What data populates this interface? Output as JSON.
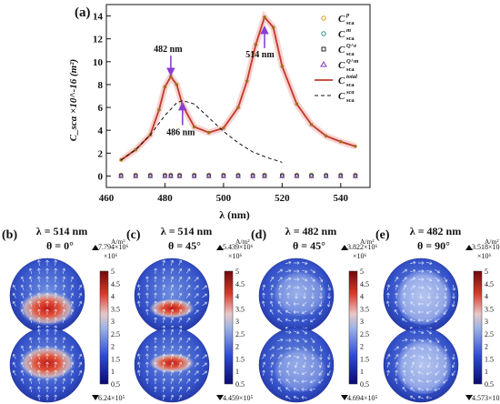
{
  "chart_data": [
    {
      "type": "line",
      "panel_label": "(a)",
      "xlabel": "λ (nm)",
      "ylabel": "C_sca ×10^-16 (m²)",
      "xlim": [
        460,
        550
      ],
      "ylim": [
        -1,
        15
      ],
      "xticks": [
        "460",
        "480",
        "500",
        "520",
        "540"
      ],
      "yticks": [
        "0",
        "2",
        "4",
        "6",
        "8",
        "10",
        "12",
        "14"
      ],
      "grid": false,
      "legend_position": "top-right",
      "series": [
        {
          "name": "p",
          "x": [
            465,
            470,
            475,
            480,
            482,
            485,
            490,
            495,
            500,
            505,
            510,
            514,
            520,
            525,
            530,
            535,
            540,
            545
          ],
          "y": [
            0.1,
            0.1,
            0.1,
            0.1,
            0.1,
            0.1,
            0.1,
            0.1,
            0.1,
            0.1,
            0.1,
            0.1,
            0.1,
            0.1,
            0.1,
            0.1,
            0.1,
            0.1
          ],
          "color": "#d4a017",
          "marker": "circle"
        },
        {
          "name": "m",
          "x": [
            465,
            470,
            475,
            480,
            482,
            485,
            490,
            495,
            500,
            505,
            510,
            514,
            520,
            525,
            530,
            535,
            540,
            545
          ],
          "y": [
            0.05,
            0.05,
            0.05,
            0.05,
            0.05,
            0.05,
            0.05,
            0.05,
            0.05,
            0.05,
            0.05,
            0.05,
            0.05,
            0.05,
            0.05,
            0.05,
            0.05,
            0.05
          ],
          "color": "#2e8b8b",
          "marker": "circle"
        },
        {
          "name": "Q^e",
          "x": [
            465,
            470,
            475,
            480,
            482,
            485,
            490,
            495,
            500,
            505,
            510,
            514,
            520,
            525,
            530,
            535,
            540,
            545
          ],
          "y": [
            0.0,
            0.0,
            0.0,
            0.0,
            0.0,
            0.0,
            0.0,
            0.0,
            0.0,
            0.0,
            0.0,
            0.0,
            0.0,
            0.0,
            0.0,
            0.0,
            0.0,
            0.0
          ],
          "color": "#222222",
          "marker": "square"
        },
        {
          "name": "Q^m",
          "x": [
            465,
            470,
            475,
            480,
            482,
            485,
            490,
            495,
            500,
            505,
            510,
            514,
            520,
            525,
            530,
            535,
            540,
            545
          ],
          "y": [
            0.0,
            0.0,
            0.0,
            0.0,
            0.0,
            0.0,
            0.0,
            0.0,
            0.0,
            0.0,
            0.0,
            0.0,
            0.0,
            0.0,
            0.0,
            0.0,
            0.0,
            0.0
          ],
          "color": "#7b3fb5",
          "marker": "triangle"
        },
        {
          "name": "total",
          "x": [
            465,
            470,
            475,
            478,
            480,
            482,
            484,
            486,
            490,
            495,
            500,
            505,
            508,
            511,
            514,
            517,
            520,
            525,
            530,
            535,
            540,
            545
          ],
          "y": [
            1.4,
            2.3,
            3.6,
            5.8,
            7.8,
            8.7,
            8.0,
            6.2,
            4.3,
            3.8,
            4.2,
            6.0,
            8.3,
            11.5,
            13.9,
            13.0,
            9.6,
            6.3,
            4.5,
            3.5,
            3.0,
            2.6
          ],
          "color": "#c0392b",
          "marker": "none"
        },
        {
          "name": "sca",
          "x": [
            465,
            470,
            475,
            480,
            484,
            486,
            490,
            495,
            500,
            505,
            510,
            515,
            520
          ],
          "y": [
            1.4,
            2.3,
            3.6,
            5.3,
            6.4,
            6.6,
            6.3,
            5.1,
            3.9,
            2.9,
            2.1,
            1.6,
            1.2
          ],
          "color": "#111111",
          "marker": "none",
          "dashed": true
        }
      ],
      "annotations": [
        {
          "text": "482 nm",
          "x": 482,
          "y": 8.7
        },
        {
          "text": "486 nm",
          "x": 486,
          "y": 6.6
        },
        {
          "text": "514 nm",
          "x": 514,
          "y": 13.9
        }
      ]
    },
    {
      "type": "heatmap",
      "panels": [
        {
          "label": "(b)",
          "lambda": "λ = 514 nm",
          "theta": "θ = 0°",
          "max": "7.794×10⁶",
          "min": "6.24×10⁵",
          "unit": "A/m²",
          "scale": "×10⁶"
        },
        {
          "label": "(c)",
          "lambda": "λ = 514 nm",
          "theta": "θ = 45°",
          "max": "5.439×10⁶",
          "min": "4.459×10⁵",
          "unit": "A/m²",
          "scale": "×10⁶"
        },
        {
          "label": "(d)",
          "lambda": "λ = 482 nm",
          "theta": "θ = 45°",
          "max": "3.822×10⁶",
          "min": "4.694×10⁵",
          "unit": "A/m²",
          "scale": "×10⁶"
        },
        {
          "label": "(e)",
          "lambda": "λ = 482 nm",
          "theta": "θ = 90°",
          "max": "3.518×10⁶",
          "min": "4.573×10⁵",
          "unit": "A/m²",
          "scale": "×10⁶"
        }
      ],
      "colorbar_ticks": [
        "5",
        "4.5",
        "4",
        "3.5",
        "3",
        "2.5",
        "2",
        "1.5",
        "1",
        "0.5"
      ]
    }
  ]
}
